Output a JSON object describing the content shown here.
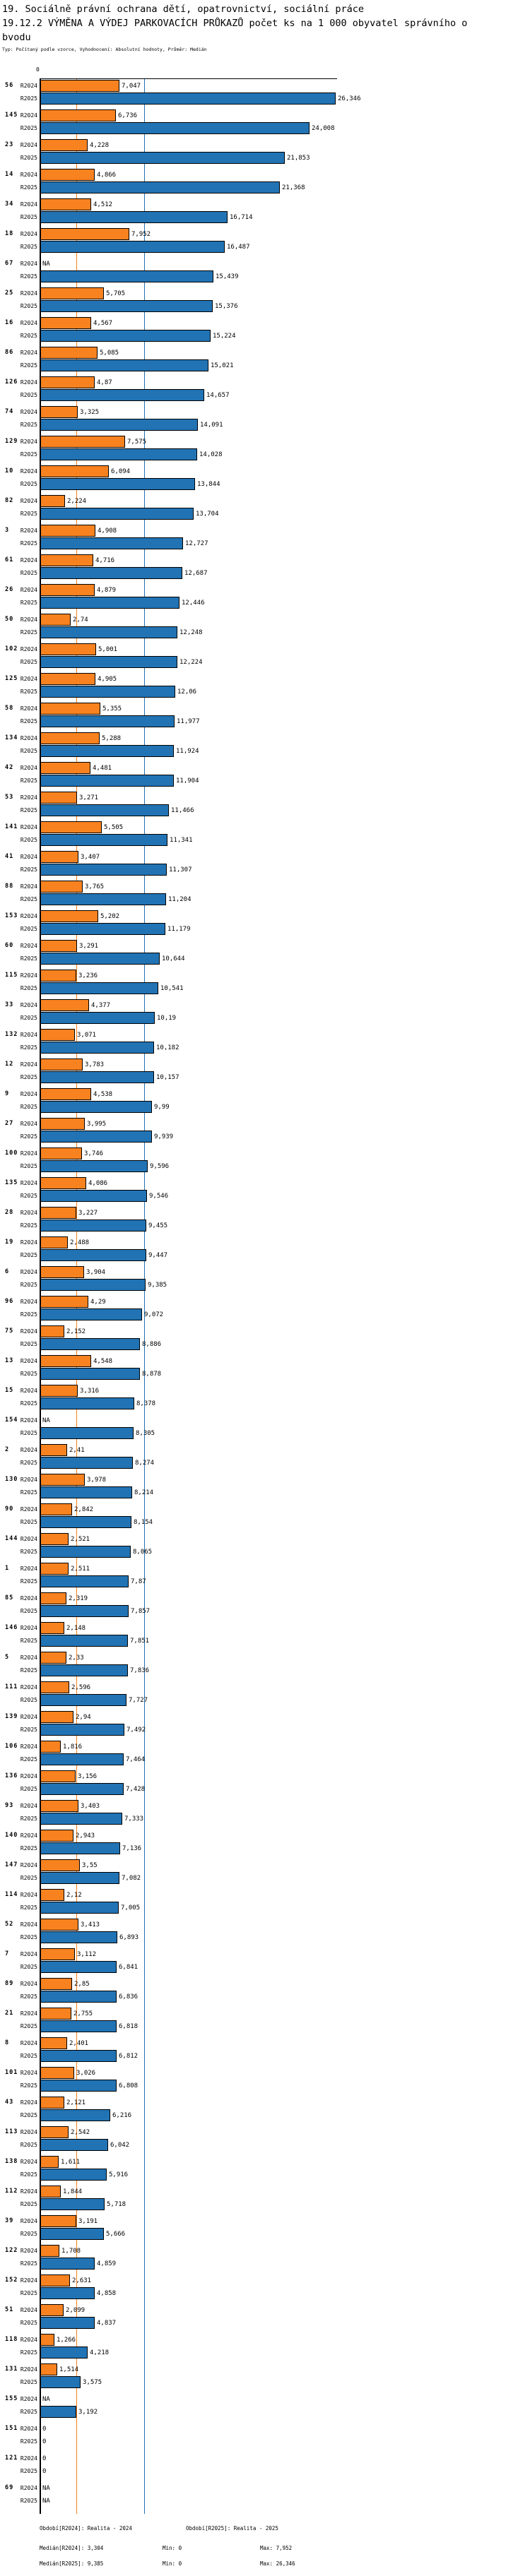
{
  "header": {
    "title_line1": "19. Sociálně právní ochrana dětí, opatrovnictví, sociální práce",
    "title_line2": "19.12.2 VÝMĚNA A VÝDEJ PARKOVACÍCH PRŮKAZŮ počet ks na 1 000 obyvatel správního obvodu",
    "meta_line": "Typ: Počítaný podle vzorce, Vyhodnocení: Absolutní hodnoty, Průměr: Medián"
  },
  "chart_data": {
    "type": "bar",
    "orientation": "horizontal",
    "axis": {
      "tick_label": "0",
      "min": 0,
      "max": 26.5,
      "grid": true
    },
    "series": [
      {
        "name": "R2024",
        "color": "#f8821f",
        "median": 3.304,
        "min": 0,
        "max": 7.952
      },
      {
        "name": "R2025",
        "color": "#2173b4",
        "median": 9.385,
        "min": 0,
        "max": 26.346
      }
    ],
    "legend_position": "bottom",
    "value_format": "czech-decimal-comma",
    "rows": [
      {
        "cat": "56",
        "R2024": "7,047",
        "R2025": "26,346"
      },
      {
        "cat": "145",
        "R2024": "6,736",
        "R2025": "24,008"
      },
      {
        "cat": "23",
        "R2024": "4,228",
        "R2025": "21,853"
      },
      {
        "cat": "14",
        "R2024": "4,866",
        "R2025": "21,368"
      },
      {
        "cat": "34",
        "R2024": "4,512",
        "R2025": "16,714"
      },
      {
        "cat": "18",
        "R2024": "7,952",
        "R2025": "16,487"
      },
      {
        "cat": "67",
        "R2024": "NA",
        "R2025": "15,439"
      },
      {
        "cat": "25",
        "R2024": "5,705",
        "R2025": "15,376"
      },
      {
        "cat": "16",
        "R2024": "4,567",
        "R2025": "15,224"
      },
      {
        "cat": "86",
        "R2024": "5,085",
        "R2025": "15,021"
      },
      {
        "cat": "126",
        "R2024": "4,87",
        "R2025": "14,657"
      },
      {
        "cat": "74",
        "R2024": "3,325",
        "R2025": "14,091"
      },
      {
        "cat": "129",
        "R2024": "7,575",
        "R2025": "14,028"
      },
      {
        "cat": "10",
        "R2024": "6,094",
        "R2025": "13,844"
      },
      {
        "cat": "82",
        "R2024": "2,224",
        "R2025": "13,704"
      },
      {
        "cat": "3",
        "R2024": "4,908",
        "R2025": "12,727"
      },
      {
        "cat": "61",
        "R2024": "4,716",
        "R2025": "12,687"
      },
      {
        "cat": "26",
        "R2024": "4,879",
        "R2025": "12,446"
      },
      {
        "cat": "50",
        "R2024": "2,74",
        "R2025": "12,248"
      },
      {
        "cat": "102",
        "R2024": "5,001",
        "R2025": "12,224"
      },
      {
        "cat": "125",
        "R2024": "4,905",
        "R2025": "12,06"
      },
      {
        "cat": "58",
        "R2024": "5,355",
        "R2025": "11,977"
      },
      {
        "cat": "134",
        "R2024": "5,288",
        "R2025": "11,924"
      },
      {
        "cat": "42",
        "R2024": "4,481",
        "R2025": "11,904"
      },
      {
        "cat": "53",
        "R2024": "3,271",
        "R2025": "11,466"
      },
      {
        "cat": "141",
        "R2024": "5,505",
        "R2025": "11,341"
      },
      {
        "cat": "41",
        "R2024": "3,407",
        "R2025": "11,307"
      },
      {
        "cat": "88",
        "R2024": "3,765",
        "R2025": "11,204"
      },
      {
        "cat": "153",
        "R2024": "5,202",
        "R2025": "11,179"
      },
      {
        "cat": "60",
        "R2024": "3,291",
        "R2025": "10,644"
      },
      {
        "cat": "115",
        "R2024": "3,236",
        "R2025": "10,541"
      },
      {
        "cat": "33",
        "R2024": "4,377",
        "R2025": "10,19"
      },
      {
        "cat": "132",
        "R2024": "3,071",
        "R2025": "10,182"
      },
      {
        "cat": "12",
        "R2024": "3,783",
        "R2025": "10,157"
      },
      {
        "cat": "9",
        "R2024": "4,538",
        "R2025": "9,99"
      },
      {
        "cat": "27",
        "R2024": "3,995",
        "R2025": "9,939"
      },
      {
        "cat": "100",
        "R2024": "3,746",
        "R2025": "9,596"
      },
      {
        "cat": "135",
        "R2024": "4,086",
        "R2025": "9,546"
      },
      {
        "cat": "28",
        "R2024": "3,227",
        "R2025": "9,455"
      },
      {
        "cat": "19",
        "R2024": "2,488",
        "R2025": "9,447"
      },
      {
        "cat": "6",
        "R2024": "3,904",
        "R2025": "9,385"
      },
      {
        "cat": "96",
        "R2024": "4,29",
        "R2025": "9,072"
      },
      {
        "cat": "75",
        "R2024": "2,152",
        "R2025": "8,886"
      },
      {
        "cat": "13",
        "R2024": "4,548",
        "R2025": "8,878"
      },
      {
        "cat": "15",
        "R2024": "3,316",
        "R2025": "8,378"
      },
      {
        "cat": "154",
        "R2024": "NA",
        "R2025": "8,305"
      },
      {
        "cat": "2",
        "R2024": "2,41",
        "R2025": "8,274"
      },
      {
        "cat": "130",
        "R2024": "3,978",
        "R2025": "8,214"
      },
      {
        "cat": "90",
        "R2024": "2,842",
        "R2025": "8,154"
      },
      {
        "cat": "144",
        "R2024": "2,521",
        "R2025": "8,065"
      },
      {
        "cat": "1",
        "R2024": "2,511",
        "R2025": "7,87"
      },
      {
        "cat": "85",
        "R2024": "2,319",
        "R2025": "7,857"
      },
      {
        "cat": "146",
        "R2024": "2,148",
        "R2025": "7,851"
      },
      {
        "cat": "5",
        "R2024": "2,33",
        "R2025": "7,836"
      },
      {
        "cat": "111",
        "R2024": "2,596",
        "R2025": "7,727"
      },
      {
        "cat": "139",
        "R2024": "2,94",
        "R2025": "7,492"
      },
      {
        "cat": "106",
        "R2024": "1,816",
        "R2025": "7,464"
      },
      {
        "cat": "136",
        "R2024": "3,156",
        "R2025": "7,428"
      },
      {
        "cat": "93",
        "R2024": "3,403",
        "R2025": "7,333"
      },
      {
        "cat": "140",
        "R2024": "2,943",
        "R2025": "7,136"
      },
      {
        "cat": "147",
        "R2024": "3,55",
        "R2025": "7,082"
      },
      {
        "cat": "114",
        "R2024": "2,12",
        "R2025": "7,005"
      },
      {
        "cat": "52",
        "R2024": "3,413",
        "R2025": "6,893"
      },
      {
        "cat": "7",
        "R2024": "3,112",
        "R2025": "6,841"
      },
      {
        "cat": "89",
        "R2024": "2,85",
        "R2025": "6,836"
      },
      {
        "cat": "21",
        "R2024": "2,755",
        "R2025": "6,818"
      },
      {
        "cat": "8",
        "R2024": "2,401",
        "R2025": "6,812"
      },
      {
        "cat": "101",
        "R2024": "3,026",
        "R2025": "6,808"
      },
      {
        "cat": "43",
        "R2024": "2,121",
        "R2025": "6,216"
      },
      {
        "cat": "113",
        "R2024": "2,542",
        "R2025": "6,042"
      },
      {
        "cat": "138",
        "R2024": "1,611",
        "R2025": "5,916"
      },
      {
        "cat": "112",
        "R2024": "1,844",
        "R2025": "5,718"
      },
      {
        "cat": "39",
        "R2024": "3,191",
        "R2025": "5,666"
      },
      {
        "cat": "122",
        "R2024": "1,708",
        "R2025": "4,859"
      },
      {
        "cat": "152",
        "R2024": "2,631",
        "R2025": "4,858"
      },
      {
        "cat": "51",
        "R2024": "2,099",
        "R2025": "4,837"
      },
      {
        "cat": "118",
        "R2024": "1,266",
        "R2025": "4,218"
      },
      {
        "cat": "131",
        "R2024": "1,514",
        "R2025": "3,575"
      },
      {
        "cat": "155",
        "R2024": "NA",
        "R2025": "3,192"
      },
      {
        "cat": "151",
        "R2024": "0",
        "R2025": "0"
      },
      {
        "cat": "121",
        "R2024": "0",
        "R2025": "0"
      },
      {
        "cat": "69",
        "R2024": "NA",
        "R2025": "NA"
      }
    ]
  },
  "footer": {
    "period_r2024": "Období[R2024]: Realita - 2024",
    "period_r2025": "Období[R2025]: Realita - 2025",
    "median_r2024": "Medián[R2024]: 3,304",
    "min_r2024": "Min: 0",
    "max_r2024": "Max: 7,952",
    "median_r2025": "Medián[R2025]: 9,385",
    "min_r2025": "Min: 0",
    "max_r2025": "Max: 26,346"
  }
}
